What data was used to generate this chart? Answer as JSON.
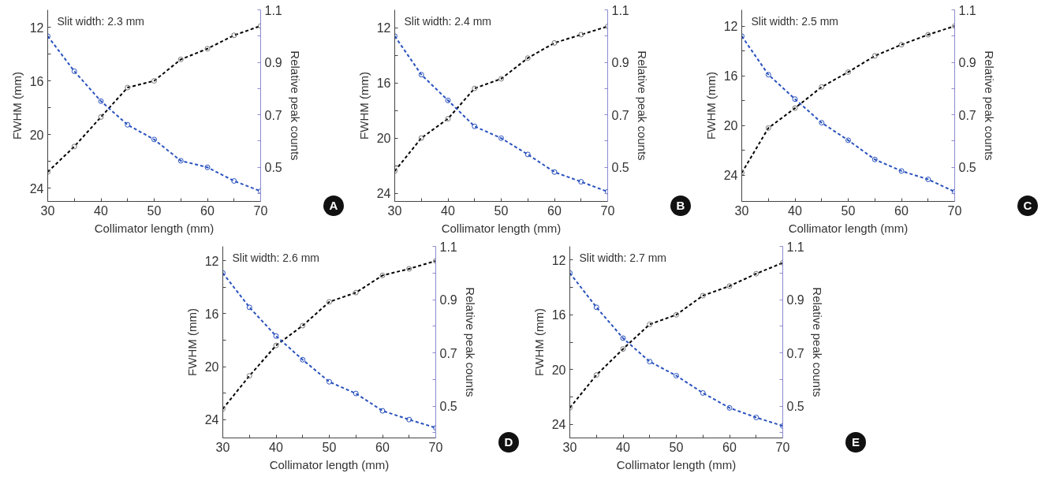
{
  "chart_data": [
    {
      "type": "line",
      "annotations": [
        "Slit width: 2.3 mm",
        "A"
      ],
      "xlabel": "Collimator length (mm)",
      "ylabel": "FWHM (mm)",
      "y2label": "Relative peak counts",
      "x": [
        30,
        35,
        40,
        45,
        50,
        55,
        60,
        65,
        70
      ],
      "xlim": [
        30,
        70
      ],
      "xticks": [
        30,
        {
          "value": 35,
          "label": null
        },
        40,
        {
          "value": 45,
          "label": null
        },
        50,
        {
          "value": 55,
          "label": null
        },
        60,
        {
          "value": 65,
          "label": null
        },
        70
      ],
      "ylim": [
        25,
        10.7
      ],
      "yticks": [
        12,
        {
          "value": 14,
          "label": null
        },
        16,
        {
          "value": 18,
          "label": null
        },
        20,
        {
          "value": 22,
          "label": null
        },
        24
      ],
      "y2lim": [
        0.37,
        1.1
      ],
      "y2ticks": [
        {
          "value": 0.4,
          "label": null
        },
        0.5,
        {
          "value": 0.6,
          "label": null
        },
        0.7,
        {
          "value": 0.8,
          "label": null
        },
        0.9,
        {
          "value": 1.0,
          "label": null
        },
        1.1
      ],
      "marker": "circle",
      "line_style": "dashed",
      "grid": false,
      "series": [
        {
          "color": "#000000",
          "values": [
            22.8,
            20.9,
            18.7,
            16.5,
            16.0,
            14.4,
            13.6,
            12.6,
            11.9
          ]
        },
        {
          "color": "#2a52be",
          "axis": "y2",
          "values": [
            1.0,
            0.866,
            0.752,
            0.662,
            0.606,
            0.525,
            0.5,
            0.448,
            0.409
          ]
        }
      ]
    },
    {
      "type": "line",
      "annotations": [
        "Slit width: 2.4 mm",
        "B"
      ],
      "xlabel": "Collimator length (mm)",
      "ylabel": "FWHM (mm)",
      "y2label": "Relative peak counts",
      "x": [
        30,
        35,
        40,
        45,
        50,
        55,
        60,
        65,
        70
      ],
      "xlim": [
        30,
        70
      ],
      "xticks": [
        30,
        {
          "value": 35,
          "label": null
        },
        40,
        {
          "value": 45,
          "label": null
        },
        50,
        {
          "value": 55,
          "label": null
        },
        60,
        {
          "value": 65,
          "label": null
        },
        70
      ],
      "ylim": [
        24.6,
        10.7
      ],
      "yticks": [
        12,
        {
          "value": 14,
          "label": null
        },
        16,
        {
          "value": 18,
          "label": null
        },
        20,
        {
          "value": 22,
          "label": null
        },
        24
      ],
      "y2lim": [
        0.37,
        1.1
      ],
      "y2ticks": [
        {
          "value": 0.4,
          "label": null
        },
        0.5,
        {
          "value": 0.6,
          "label": null
        },
        0.7,
        {
          "value": 0.8,
          "label": null
        },
        0.9,
        {
          "value": 1.0,
          "label": null
        },
        1.1
      ],
      "marker": "circle",
      "line_style": "dashed",
      "grid": false,
      "series": [
        {
          "color": "#000000",
          "values": [
            22.4,
            20.0,
            18.6,
            16.4,
            15.7,
            14.2,
            13.1,
            12.5,
            11.9
          ]
        },
        {
          "color": "#2a52be",
          "axis": "y2",
          "values": [
            1.0,
            0.853,
            0.755,
            0.656,
            0.611,
            0.549,
            0.482,
            0.445,
            0.407
          ]
        }
      ]
    },
    {
      "type": "line",
      "annotations": [
        "Slit width: 2.5 mm",
        "C"
      ],
      "xlabel": "Collimator length (mm)",
      "ylabel": "FWHM (mm)",
      "y2label": "Relative peak counts",
      "x": [
        30,
        35,
        40,
        45,
        50,
        55,
        60,
        65,
        70
      ],
      "xlim": [
        30,
        70
      ],
      "xticks": [
        30,
        {
          "value": 35,
          "label": null
        },
        40,
        {
          "value": 45,
          "label": null
        },
        50,
        {
          "value": 55,
          "label": null
        },
        60,
        {
          "value": 65,
          "label": null
        },
        70
      ],
      "ylim": [
        26.1,
        10.7
      ],
      "yticks": [
        12,
        {
          "value": 14,
          "label": null
        },
        16,
        {
          "value": 18,
          "label": null
        },
        20,
        {
          "value": 22,
          "label": null
        },
        24
      ],
      "y2lim": [
        0.37,
        1.1
      ],
      "y2ticks": [
        {
          "value": 0.4,
          "label": null
        },
        0.5,
        {
          "value": 0.6,
          "label": null
        },
        0.7,
        {
          "value": 0.8,
          "label": null
        },
        0.9,
        {
          "value": 1.0,
          "label": null
        },
        1.1
      ],
      "marker": "circle",
      "line_style": "dashed",
      "grid": false,
      "series": [
        {
          "color": "#000000",
          "values": [
            23.8,
            20.2,
            18.6,
            16.9,
            15.7,
            14.4,
            13.5,
            12.7,
            12.0
          ]
        },
        {
          "color": "#2a52be",
          "axis": "y2",
          "values": [
            1.0,
            0.853,
            0.76,
            0.67,
            0.603,
            0.53,
            0.486,
            0.454,
            0.407
          ]
        }
      ]
    },
    {
      "type": "line",
      "annotations": [
        "Slit width: 2.6 mm",
        "D"
      ],
      "xlabel": "Collimator length (mm)",
      "ylabel": "FWHM (mm)",
      "y2label": "Relative peak counts",
      "x": [
        30,
        35,
        40,
        45,
        50,
        55,
        60,
        65,
        70
      ],
      "xlim": [
        30,
        70
      ],
      "xticks": [
        30,
        {
          "value": 35,
          "label": null
        },
        40,
        {
          "value": 45,
          "label": null
        },
        50,
        {
          "value": 55,
          "label": null
        },
        60,
        {
          "value": 65,
          "label": null
        },
        70
      ],
      "ylim": [
        25.4,
        10.9
      ],
      "yticks": [
        12,
        {
          "value": 14,
          "label": null
        },
        16,
        {
          "value": 18,
          "label": null
        },
        20,
        {
          "value": 22,
          "label": null
        },
        24
      ],
      "y2lim": [
        0.38,
        1.1
      ],
      "y2ticks": [
        {
          "value": 0.4,
          "label": null
        },
        0.5,
        {
          "value": 0.6,
          "label": null
        },
        0.7,
        {
          "value": 0.8,
          "label": null
        },
        0.9,
        {
          "value": 1.0,
          "label": null
        },
        1.1
      ],
      "marker": "circle",
      "line_style": "dashed",
      "grid": false,
      "series": [
        {
          "color": "#000000",
          "values": [
            23.2,
            20.7,
            18.4,
            16.9,
            15.1,
            14.4,
            13.1,
            12.6,
            12.0
          ]
        },
        {
          "color": "#2a52be",
          "axis": "y2",
          "values": [
            1.0,
            0.871,
            0.763,
            0.674,
            0.591,
            0.547,
            0.482,
            0.449,
            0.418
          ]
        }
      ]
    },
    {
      "type": "line",
      "annotations": [
        "Slit width: 2.7 mm",
        "E"
      ],
      "xlabel": "Collimator length (mm)",
      "ylabel": "FWHM (mm)",
      "y2label": "Relative peak counts",
      "x": [
        30,
        35,
        40,
        45,
        50,
        55,
        60,
        65,
        70
      ],
      "xlim": [
        30,
        70
      ],
      "xticks": [
        30,
        {
          "value": 35,
          "label": null
        },
        40,
        {
          "value": 45,
          "label": null
        },
        50,
        {
          "value": 55,
          "label": null
        },
        60,
        {
          "value": 65,
          "label": null
        },
        70
      ],
      "ylim": [
        25.0,
        11.0
      ],
      "yticks": [
        12,
        {
          "value": 14,
          "label": null
        },
        16,
        {
          "value": 18,
          "label": null
        },
        20,
        {
          "value": 22,
          "label": null
        },
        24
      ],
      "y2lim": [
        0.38,
        1.1
      ],
      "y2ticks": [
        {
          "value": 0.4,
          "label": null
        },
        0.5,
        {
          "value": 0.6,
          "label": null
        },
        0.7,
        {
          "value": 0.8,
          "label": null
        },
        0.9,
        {
          "value": 1.0,
          "label": null
        },
        1.1
      ],
      "marker": "circle",
      "line_style": "dashed",
      "grid": false,
      "series": [
        {
          "color": "#000000",
          "values": [
            22.8,
            20.4,
            18.5,
            16.7,
            16.0,
            14.6,
            13.9,
            13.0,
            12.2
          ]
        },
        {
          "color": "#2a52be",
          "axis": "y2",
          "values": [
            1.0,
            0.871,
            0.755,
            0.667,
            0.614,
            0.549,
            0.493,
            0.457,
            0.425
          ]
        }
      ]
    }
  ]
}
